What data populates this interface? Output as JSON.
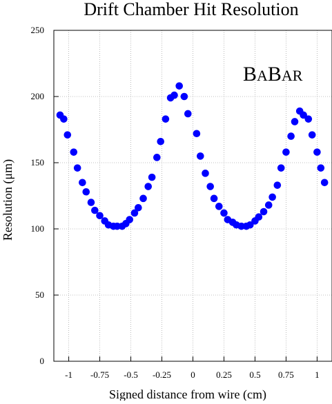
{
  "chart_data": {
    "type": "scatter",
    "title": "Drift Chamber Hit Resolution",
    "xlabel": "Signed distance from wire (cm)",
    "ylabel": "Resolution (μm)",
    "xlim": [
      -1.12,
      1.12
    ],
    "ylim": [
      0,
      250
    ],
    "grid": true,
    "legend": "none",
    "x_ticks": [
      {
        "value": -1.0,
        "label": "-1"
      },
      {
        "value": -0.75,
        "label": "-0.75"
      },
      {
        "value": -0.5,
        "label": "-0.5"
      },
      {
        "value": -0.25,
        "label": "-0.25"
      },
      {
        "value": 0,
        "label": "0"
      },
      {
        "value": 0.25,
        "label": "0.25"
      },
      {
        "value": 0.5,
        "label": "0.5"
      },
      {
        "value": 0.75,
        "label": "0.75"
      },
      {
        "value": 1.0,
        "label": "1"
      }
    ],
    "y_ticks": [
      {
        "value": 0,
        "label": "0"
      },
      {
        "value": 50,
        "label": "50"
      },
      {
        "value": 100,
        "label": "100"
      },
      {
        "value": 150,
        "label": "150"
      },
      {
        "value": 200,
        "label": "200"
      },
      {
        "value": 250,
        "label": "250"
      }
    ],
    "marker_color": "#0000ff",
    "series": [
      {
        "x": [
          -1.07,
          -1.04,
          -1.01,
          -0.96,
          -0.93,
          -0.89,
          -0.86,
          -0.82,
          -0.79,
          -0.75,
          -0.71,
          -0.68,
          -0.64,
          -0.61,
          -0.57,
          -0.54,
          -0.51,
          -0.47,
          -0.44,
          -0.4,
          -0.36,
          -0.33,
          -0.29,
          -0.26,
          -0.22,
          -0.18,
          -0.15,
          -0.11,
          -0.07,
          -0.04,
          0.03,
          0.06,
          0.1,
          0.14,
          0.17,
          0.21,
          0.25,
          0.28,
          0.32,
          0.35,
          0.39,
          0.43,
          0.46,
          0.5,
          0.53,
          0.57,
          0.61,
          0.64,
          0.68,
          0.71,
          0.75,
          0.79,
          0.82,
          0.86,
          0.89,
          0.93,
          0.96,
          1.0,
          1.03,
          1.06
        ],
        "y": [
          186,
          183,
          171,
          158,
          146,
          135,
          128,
          120,
          114,
          110,
          106,
          103,
          102,
          102,
          102,
          104,
          107,
          112,
          116,
          123,
          132,
          139,
          154,
          166,
          183,
          199,
          201,
          208,
          200,
          187,
          172,
          155,
          142,
          132,
          123,
          117,
          112,
          107,
          105,
          103,
          102,
          102,
          103,
          106,
          109,
          113,
          118,
          124,
          133,
          146,
          158,
          170,
          181,
          189,
          186,
          183,
          171,
          158,
          146,
          135
        ]
      }
    ]
  },
  "badge": {
    "brand_first": "B",
    "brand_a": "A",
    "brand_second": "B",
    "brand_ar": "AR"
  }
}
